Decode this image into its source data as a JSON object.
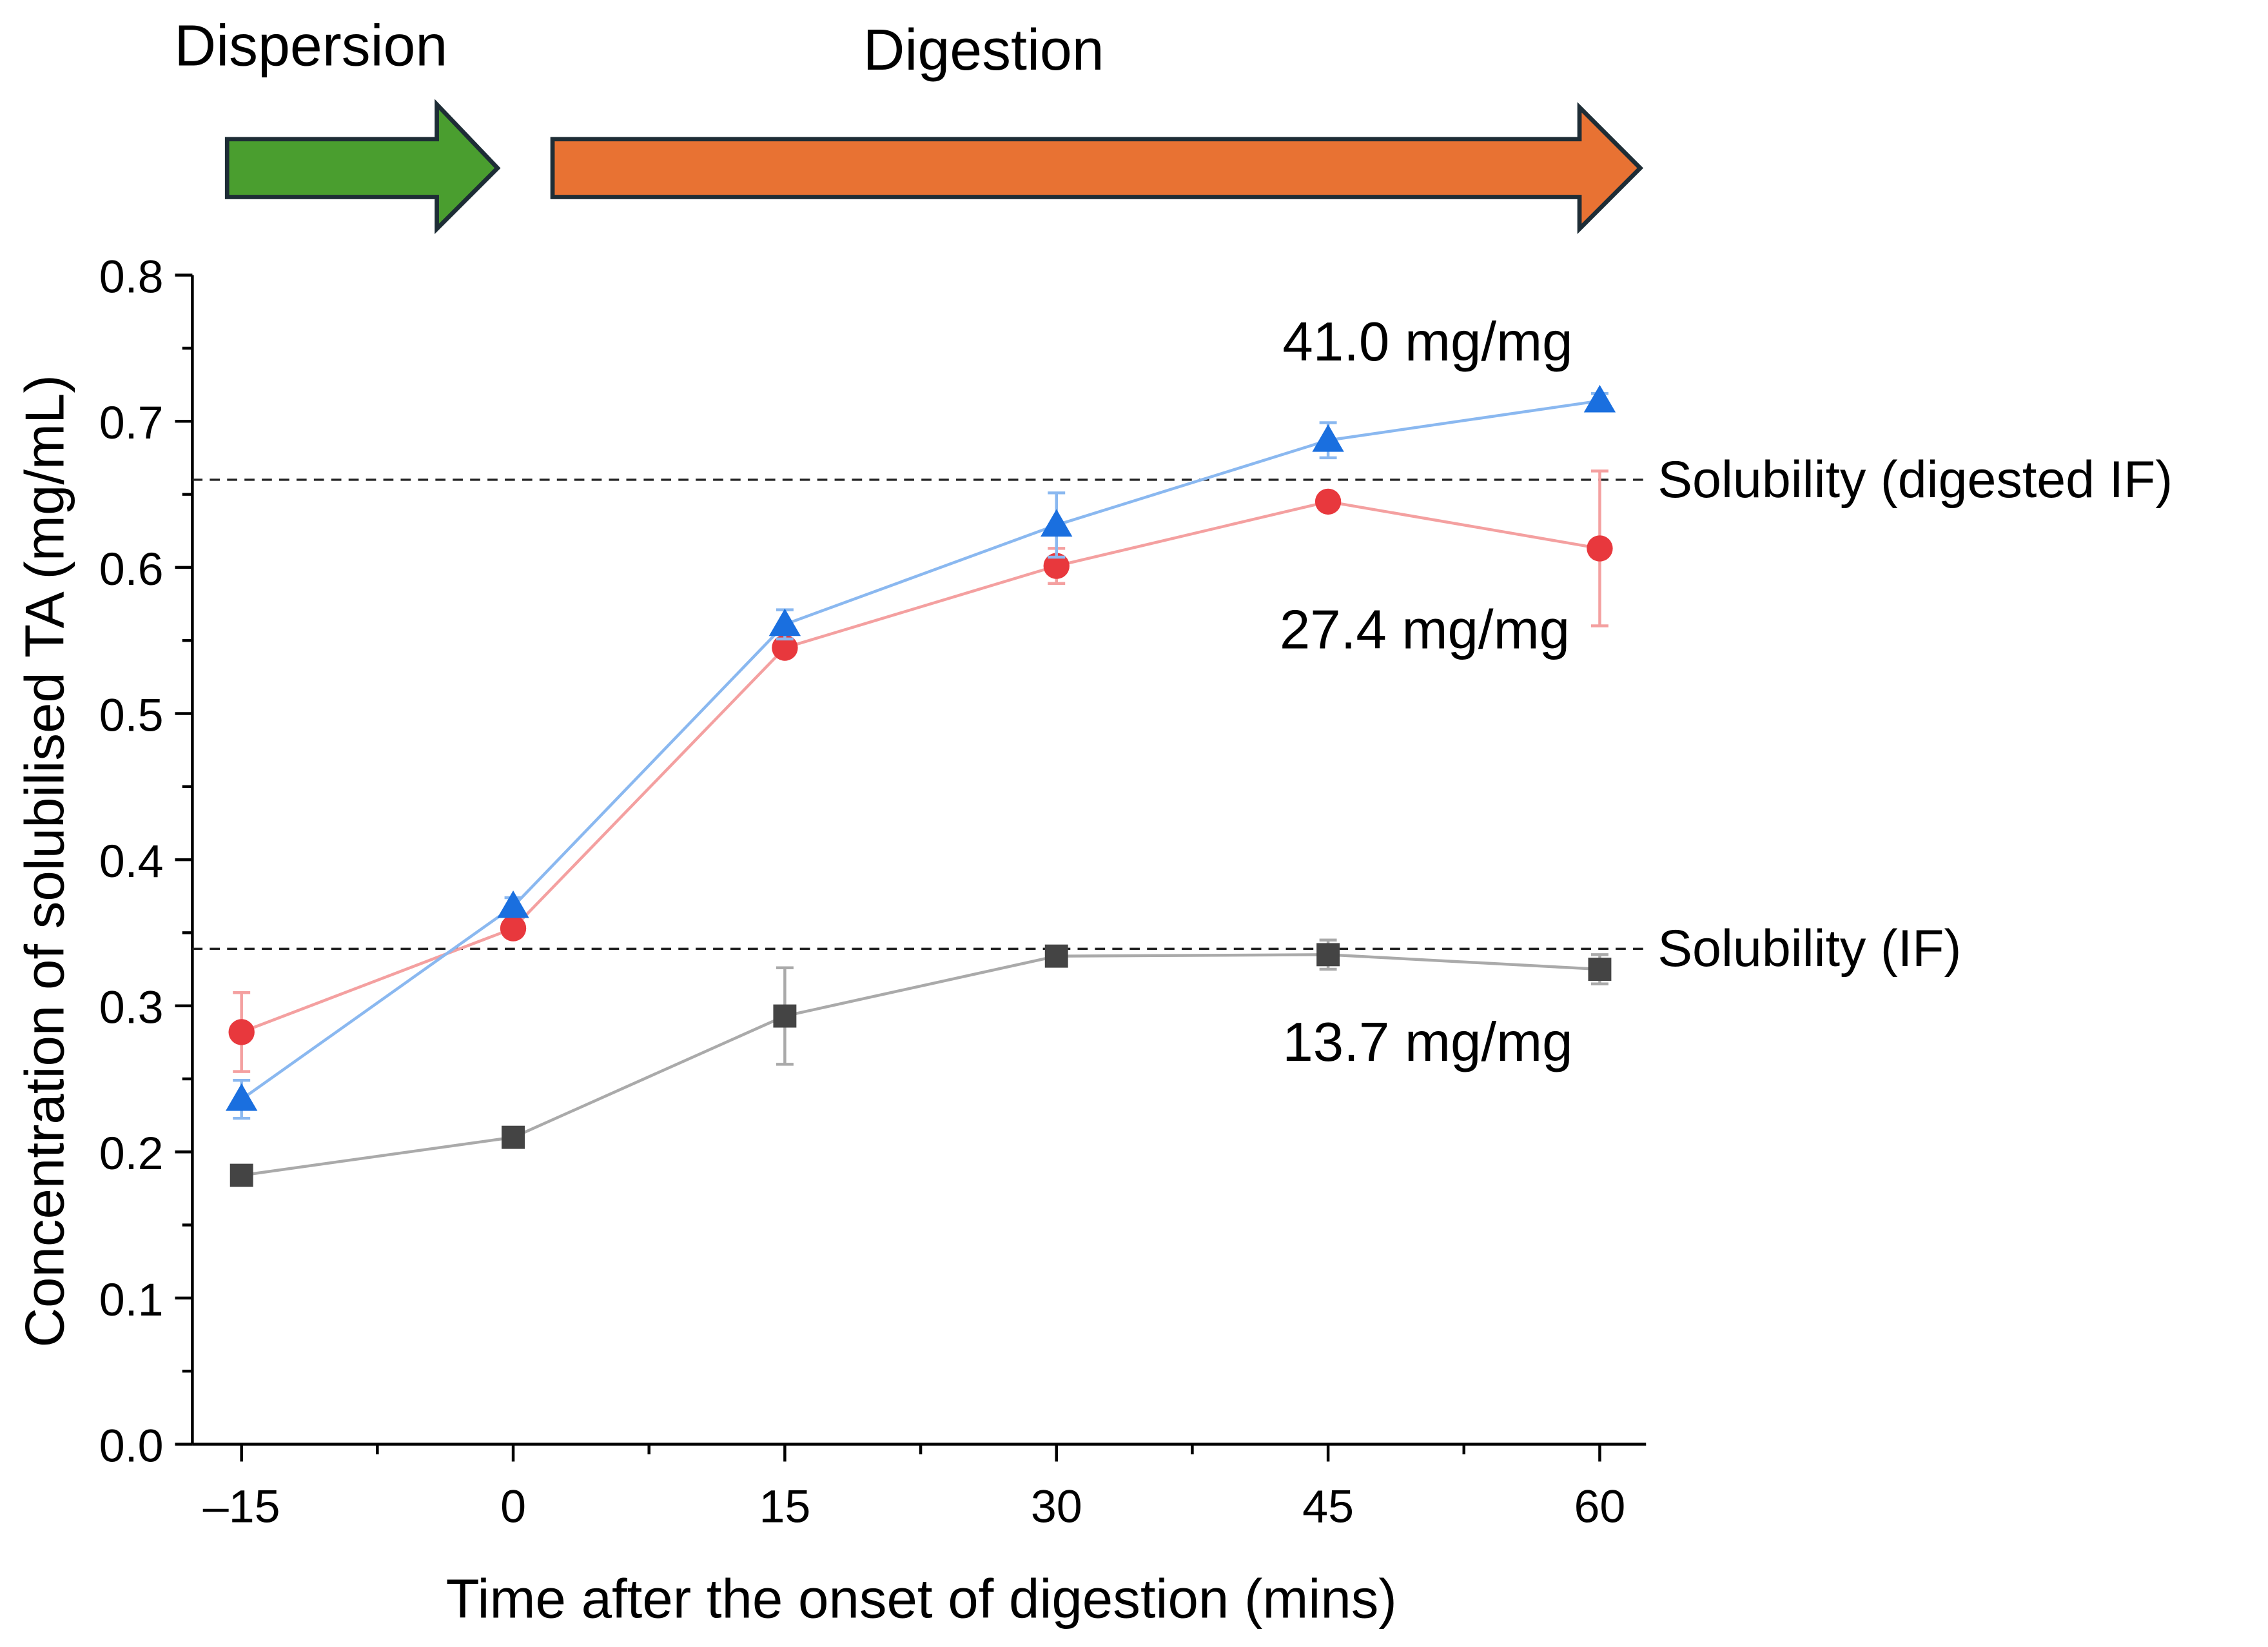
{
  "chart_data": {
    "type": "line",
    "phases": [
      {
        "label": "Dispersion",
        "color": "#4a9e2f"
      },
      {
        "label": "Digestion",
        "color": "#e87233"
      }
    ],
    "xlabel": "Time after the onset of digestion (mins)",
    "ylabel": "Concentration of solubilised TA (mg/mL)",
    "x": [
      -15,
      0,
      15,
      30,
      45,
      60
    ],
    "xticks": [
      "–15",
      "0",
      "15",
      "30",
      "45",
      "60"
    ],
    "xlim": [
      -17.7,
      62.6
    ],
    "yticks": [
      "0.0",
      "0.1",
      "0.2",
      "0.3",
      "0.4",
      "0.5",
      "0.6",
      "0.7",
      "0.8"
    ],
    "ylim": [
      0,
      0.8
    ],
    "grid": false,
    "series": [
      {
        "name": "gray",
        "color": "#444444",
        "line": "#aaaaaa",
        "marker": "square",
        "values": [
          0.184,
          0.21,
          0.293,
          0.334,
          0.335,
          0.325
        ],
        "errors": [
          0.005,
          0.005,
          0.033,
          0.006,
          0.01,
          0.01
        ]
      },
      {
        "name": "red",
        "color": "#e8383d",
        "line": "#f4a0a0",
        "marker": "circle",
        "values": [
          0.282,
          0.353,
          0.545,
          0.601,
          0.645,
          0.613
        ],
        "errors": [
          0.027,
          0.006,
          0.005,
          0.012,
          0.005,
          0.053
        ]
      },
      {
        "name": "blue",
        "color": "#1a6fdf",
        "line": "#8ab8f0",
        "marker": "triangle",
        "values": [
          0.236,
          0.368,
          0.561,
          0.629,
          0.687,
          0.714
        ],
        "errors": [
          0.013,
          0.006,
          0.01,
          0.022,
          0.012,
          0.005
        ]
      }
    ],
    "reference_lines": [
      {
        "label": "Solubility (digested IF)",
        "y": 0.66
      },
      {
        "label": "Solubility (IF)",
        "y": 0.339
      }
    ],
    "annotations": [
      "41.0 mg/mg",
      "27.4 mg/mg",
      "13.7 mg/mg"
    ]
  }
}
